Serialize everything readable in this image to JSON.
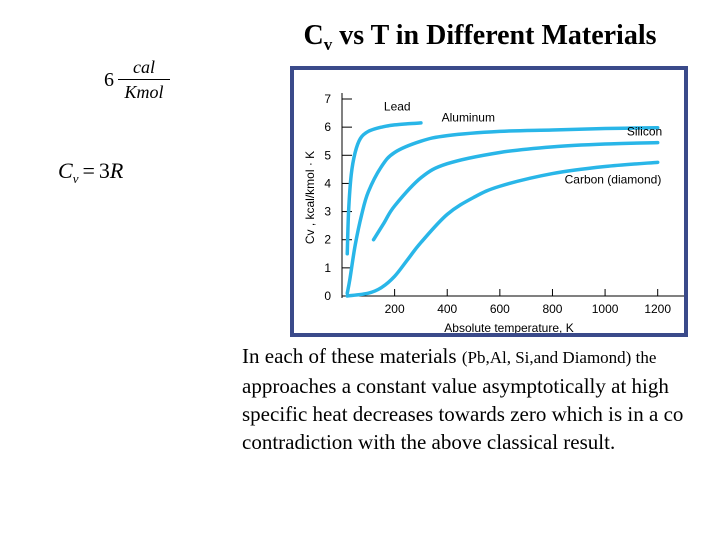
{
  "slide": {
    "title_main": "C",
    "title_sub": "v",
    "title_rest": " vs T in Different Materials"
  },
  "formula_units": {
    "coefficient": "6",
    "numerator": "cal",
    "denominator": "Kmol"
  },
  "formula_cv": {
    "symbol": "C",
    "subscript": "v",
    "equals": "=",
    "number": "3",
    "constant": "R"
  },
  "caption": {
    "line1_a": "In each of these materials ",
    "line1_b": "(Pb,Al, Si,and Diamond) the",
    "line2": "approaches a constant value asymptotically at high",
    "line3": "specific heat decreases towards zero which is in a co",
    "line4": "contradiction with the above classical result."
  },
  "chart_data": {
    "type": "line",
    "xlabel": "Absolute temperature, K",
    "ylabel": "Cv , kcal/kmol · K",
    "xlim": [
      0,
      1300
    ],
    "ylim": [
      0,
      7
    ],
    "x_ticks": [
      200,
      400,
      600,
      800,
      1000,
      1200
    ],
    "y_ticks": [
      0,
      1,
      2,
      3,
      4,
      5,
      6,
      7
    ],
    "line_color": "#29b6e8",
    "series": [
      {
        "name": "Lead",
        "x": [
          20,
          25,
          35,
          50,
          70,
          100,
          150,
          200,
          250,
          300
        ],
        "y": [
          1.5,
          3.0,
          4.3,
          5.1,
          5.6,
          5.85,
          6.0,
          6.08,
          6.12,
          6.15
        ]
      },
      {
        "name": "Aluminum",
        "x": [
          20,
          30,
          50,
          75,
          100,
          150,
          200,
          300,
          400,
          600,
          800,
          1000,
          1200
        ],
        "y": [
          0.1,
          0.6,
          1.8,
          2.9,
          3.7,
          4.6,
          5.1,
          5.5,
          5.7,
          5.85,
          5.9,
          5.95,
          5.98
        ]
      },
      {
        "name": "Silicon",
        "x": [
          120,
          160,
          200,
          300,
          400,
          600,
          800,
          1000,
          1200
        ],
        "y": [
          2.0,
          2.6,
          3.2,
          4.2,
          4.7,
          5.1,
          5.3,
          5.4,
          5.45
        ]
      },
      {
        "name": "Carbon (diamond)",
        "x": [
          20,
          100,
          150,
          200,
          250,
          300,
          400,
          500,
          600,
          800,
          1000,
          1200
        ],
        "y": [
          0.0,
          0.1,
          0.3,
          0.7,
          1.3,
          1.9,
          2.9,
          3.5,
          3.9,
          4.35,
          4.6,
          4.75
        ]
      }
    ],
    "annotations": [
      {
        "text": "Lead",
        "x": 210,
        "y": 6.6
      },
      {
        "text": "Aluminum",
        "x": 480,
        "y": 6.2
      },
      {
        "text": "Silicon",
        "x": 1150,
        "y": 5.7
      },
      {
        "text": "Carbon (diamond)",
        "x": 1030,
        "y": 4.0
      }
    ],
    "grid": false
  }
}
